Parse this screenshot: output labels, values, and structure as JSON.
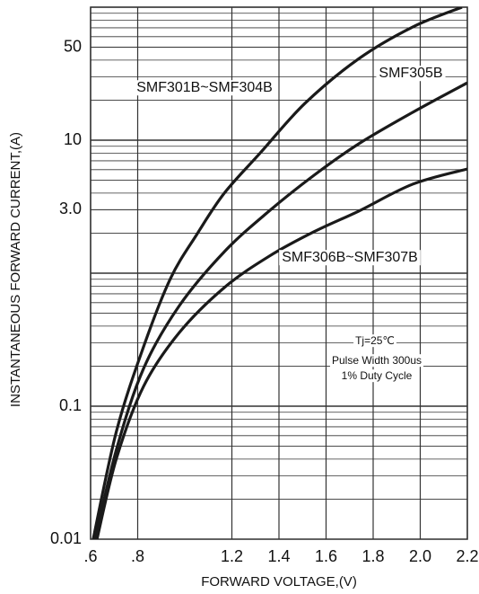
{
  "chart_data": {
    "type": "line",
    "x_label": "FORWARD VOLTAGE,(V)",
    "y_label": "INSTANTANEOUS FORWARD CURRENT,(A)",
    "xlim": [
      0.6,
      2.2
    ],
    "xticks": [
      {
        "value": 0.6,
        "label": ".6"
      },
      {
        "value": 0.8,
        "label": ".8"
      },
      {
        "value": 1.2,
        "label": "1.2"
      },
      {
        "value": 1.4,
        "label": "1.4"
      },
      {
        "value": 1.6,
        "label": "1.6"
      },
      {
        "value": 1.8,
        "label": "1.8"
      },
      {
        "value": 2.0,
        "label": "2.0"
      },
      {
        "value": 2.2,
        "label": "2.2"
      }
    ],
    "ylim": [
      0.01,
      100
    ],
    "yticks": [
      0.01,
      0.1,
      {
        "value": 3,
        "label": "3.0"
      },
      10,
      50
    ],
    "log_y": true,
    "grid": true,
    "series": [
      {
        "name": "SMF301B~SMF304B",
        "color": "#1a1a1a",
        "x": [
          0.611,
          0.71,
          0.825,
          0.939,
          1.053,
          1.168,
          1.32,
          1.51,
          1.739,
          1.968,
          2.177
        ],
        "values": [
          0.01,
          0.065,
          0.28,
          0.91,
          1.98,
          4.0,
          8.0,
          18.9,
          41,
          71,
          100
        ]
      },
      {
        "name": "SMF305B",
        "color": "#1a1a1a",
        "x": [
          0.619,
          0.71,
          0.825,
          0.977,
          1.168,
          1.358,
          1.549,
          1.739,
          1.968,
          2.2
        ],
        "values": [
          0.01,
          0.0474,
          0.192,
          0.57,
          1.45,
          2.93,
          5.45,
          9.4,
          16.2,
          27
        ]
      },
      {
        "name": "SMF306B~SMF307B",
        "color": "#1a1a1a",
        "x": [
          0.627,
          0.71,
          0.825,
          0.977,
          1.168,
          1.358,
          1.549,
          1.739,
          1.968,
          2.2
        ],
        "values": [
          0.01,
          0.0406,
          0.141,
          0.358,
          0.78,
          1.34,
          2.05,
          2.93,
          4.67,
          6.08
        ]
      }
    ],
    "annotations": [
      "Tj=25℃",
      "Pulse Width 300us",
      "1% Duty Cycle"
    ]
  }
}
